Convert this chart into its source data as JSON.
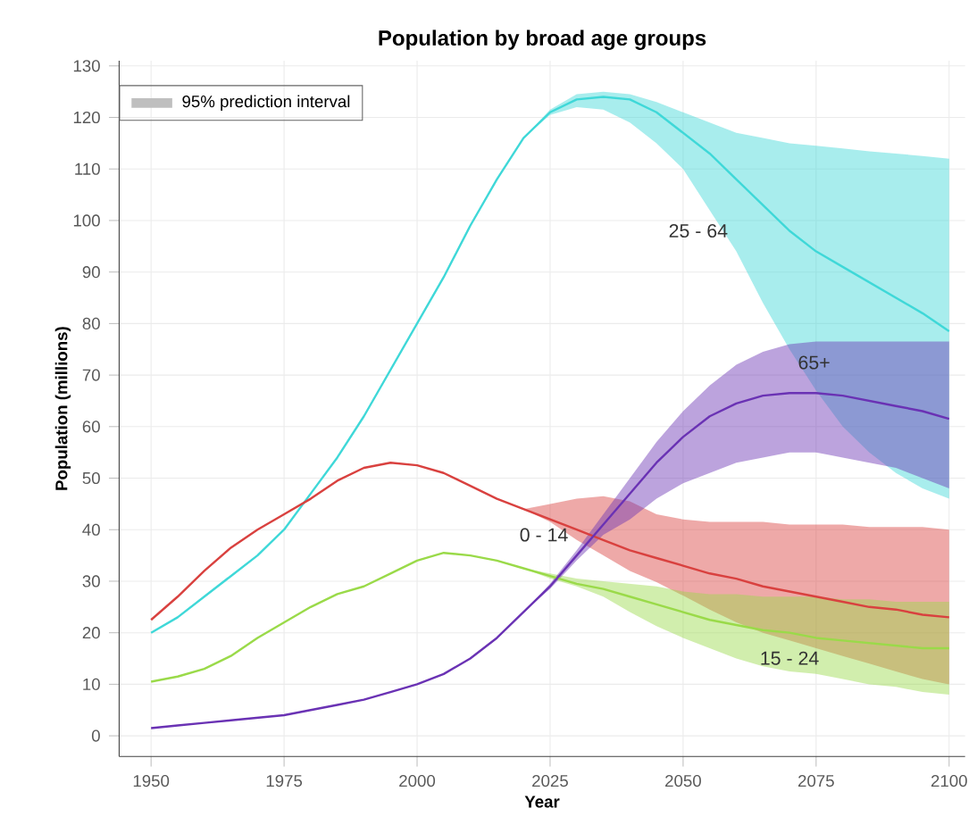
{
  "chart_data": {
    "type": "line",
    "title": "Population by broad age groups",
    "xlabel": "Year",
    "ylabel": "Population (millions)",
    "legend_title": "95% prediction interval",
    "grid": true,
    "xlim": [
      1944,
      2103
    ],
    "ylim": [
      -4,
      131
    ],
    "xticks": [
      1950,
      1975,
      2000,
      2025,
      2050,
      2075,
      2100
    ],
    "yticks": [
      0,
      10,
      20,
      30,
      40,
      50,
      60,
      70,
      80,
      90,
      100,
      110,
      120,
      130
    ],
    "x": [
      1950,
      1955,
      1960,
      1965,
      1970,
      1975,
      1980,
      1985,
      1990,
      1995,
      2000,
      2005,
      2010,
      2015,
      2020,
      2025,
      2030,
      2035,
      2040,
      2045,
      2050,
      2055,
      2060,
      2065,
      2070,
      2075,
      2080,
      2085,
      2090,
      2095,
      2100
    ],
    "series": [
      {
        "name": "25 - 64",
        "color": "#3fd8d8",
        "values": [
          20,
          23,
          27,
          31,
          35,
          40,
          47,
          54,
          62,
          71,
          80,
          89,
          99,
          108,
          116,
          121,
          123.5,
          124,
          123.5,
          121,
          117,
          113,
          108,
          103,
          98,
          94,
          91,
          88,
          85,
          82,
          78.5
        ],
        "lower": [
          null,
          null,
          null,
          null,
          null,
          null,
          null,
          null,
          null,
          null,
          null,
          null,
          null,
          null,
          116,
          120.5,
          122,
          121.5,
          119,
          115,
          110,
          102,
          94,
          84,
          75,
          67,
          60,
          55,
          51,
          48,
          46
        ],
        "upper": [
          null,
          null,
          null,
          null,
          null,
          null,
          null,
          null,
          null,
          null,
          null,
          null,
          null,
          null,
          116,
          121.5,
          124.5,
          125,
          124.5,
          123,
          121,
          119,
          117,
          116,
          115,
          114.5,
          114,
          113.4,
          113,
          112.5,
          112
        ]
      },
      {
        "name": "0 - 14",
        "color": "#d9413f",
        "values": [
          22.5,
          27,
          32,
          36.5,
          40,
          43,
          46,
          49.5,
          52,
          53,
          52.5,
          51,
          48.5,
          46,
          44,
          42,
          40,
          38,
          36,
          34.5,
          33,
          31.5,
          30.5,
          29,
          28,
          27,
          26,
          25,
          24.5,
          23.5,
          23
        ],
        "lower": [
          null,
          null,
          null,
          null,
          null,
          null,
          null,
          null,
          null,
          null,
          null,
          null,
          null,
          null,
          44,
          41.5,
          38,
          35,
          32,
          29.8,
          27.2,
          24.5,
          22,
          20,
          18.5,
          17,
          15.5,
          14,
          12.5,
          11,
          10
        ],
        "upper": [
          null,
          null,
          null,
          null,
          null,
          null,
          null,
          null,
          null,
          null,
          null,
          null,
          null,
          null,
          44,
          45,
          46,
          46.5,
          45.5,
          43,
          42,
          41.5,
          41.5,
          41.5,
          41,
          41,
          41,
          40.5,
          40.5,
          40.5,
          40
        ]
      },
      {
        "name": "15 - 24",
        "color": "#9ada49",
        "values": [
          10.5,
          11.5,
          13,
          15.5,
          19,
          22,
          25,
          27.5,
          29,
          31.5,
          34,
          35.5,
          35,
          34,
          32.5,
          31,
          29.5,
          28.5,
          27,
          25.5,
          24,
          22.5,
          21.5,
          20.5,
          20,
          19,
          18.5,
          18,
          17.5,
          17,
          17
        ],
        "lower": [
          null,
          null,
          null,
          null,
          null,
          null,
          null,
          null,
          null,
          null,
          null,
          null,
          null,
          null,
          32.5,
          30.5,
          29,
          27,
          24,
          21.3,
          19,
          17,
          15,
          13.5,
          12.5,
          12,
          11,
          10,
          9.5,
          8.5,
          8
        ],
        "upper": [
          null,
          null,
          null,
          null,
          null,
          null,
          null,
          null,
          null,
          null,
          null,
          null,
          null,
          null,
          32.5,
          31.5,
          30.5,
          30,
          29.5,
          29,
          28,
          27.5,
          27.5,
          27,
          27,
          27,
          26.5,
          26.5,
          26,
          26,
          26
        ]
      },
      {
        "name": "65+",
        "color": "#6a32b4",
        "values": [
          1.5,
          2,
          2.5,
          3,
          3.5,
          4,
          5,
          6,
          7,
          8.5,
          10,
          12,
          15,
          19,
          24,
          29,
          35,
          41,
          47,
          53,
          58,
          62,
          64.5,
          66,
          66.5,
          66.5,
          66,
          65,
          64,
          63,
          61.5
        ],
        "lower": [
          null,
          null,
          null,
          null,
          null,
          null,
          null,
          null,
          null,
          null,
          null,
          null,
          null,
          null,
          24,
          28.5,
          34,
          39,
          42,
          46,
          49,
          51,
          53,
          54,
          55,
          55,
          54,
          53,
          52,
          50,
          48
        ],
        "upper": [
          null,
          null,
          null,
          null,
          null,
          null,
          null,
          null,
          null,
          null,
          null,
          null,
          null,
          null,
          24,
          29.5,
          36,
          43,
          50,
          57,
          63,
          68,
          72,
          74.5,
          76,
          76.5,
          76.5,
          76.5,
          76.5,
          76.5,
          76.5
        ]
      }
    ]
  }
}
